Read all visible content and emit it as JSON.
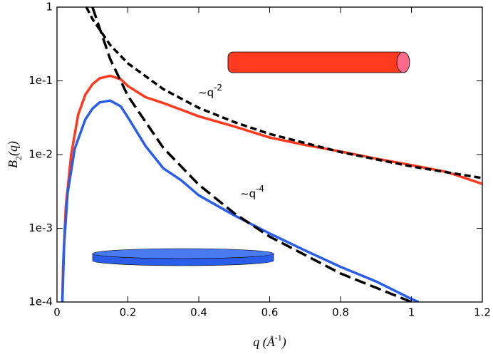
{
  "chart_data": {
    "type": "line",
    "log_y": true,
    "xlabel": [
      "q (Å",
      "-1",
      ")"
    ],
    "ylabel": [
      "B",
      "2",
      "(q)"
    ],
    "xlim": [
      0,
      1.2
    ],
    "ylim": [
      0.0001,
      1
    ],
    "xticks": [
      0,
      0.2,
      0.4,
      0.6,
      0.8,
      1,
      1.2
    ],
    "yticks": [
      {
        "value": 0.0001,
        "label": "1e-4"
      },
      {
        "value": 0.001,
        "label": "1e-3"
      },
      {
        "value": 0.01,
        "label": "1e-2"
      },
      {
        "value": 0.1,
        "label": "1e-1"
      },
      {
        "value": 1,
        "label": "1"
      }
    ],
    "annotations": [
      [
        "~q",
        "-2"
      ],
      [
        "~q",
        "-4"
      ]
    ],
    "series": [
      {
        "color": "#ff3a1e",
        "style": "solid",
        "x": [
          0.015,
          0.017,
          0.025,
          0.04,
          0.06,
          0.08,
          0.1,
          0.12,
          0.15,
          0.18,
          0.2,
          0.25,
          0.3,
          0.4,
          0.5,
          0.6,
          0.7,
          0.8,
          0.9,
          1.0,
          1.1,
          1.2
        ],
        "values": [
          0.0001,
          0.0003,
          0.002,
          0.01,
          0.035,
          0.065,
          0.09,
          0.108,
          0.117,
          0.105,
          0.085,
          0.06,
          0.05,
          0.033,
          0.024,
          0.017,
          0.0135,
          0.011,
          0.0088,
          0.0072,
          0.0058,
          0.004
        ]
      },
      {
        "color": "#2a5ee8",
        "style": "solid",
        "x": [
          0.015,
          0.02,
          0.03,
          0.05,
          0.08,
          0.1,
          0.12,
          0.15,
          0.18,
          0.2,
          0.25,
          0.3,
          0.35,
          0.4,
          0.5,
          0.6,
          0.7,
          0.8,
          0.9,
          1.0,
          1.02
        ],
        "values": [
          0.0001,
          0.0006,
          0.003,
          0.012,
          0.03,
          0.042,
          0.051,
          0.054,
          0.045,
          0.032,
          0.013,
          0.0065,
          0.0045,
          0.0028,
          0.0015,
          0.00085,
          0.0005,
          0.0003,
          0.00019,
          0.00011,
          0.0001
        ]
      },
      {
        "color": "#000000",
        "style": "dashed",
        "x": [
          0.083,
          0.1,
          0.15,
          0.2,
          0.3,
          0.4,
          0.5,
          0.6,
          0.8,
          1.0,
          1.2
        ],
        "values": [
          1,
          0.69,
          0.307,
          0.173,
          0.077,
          0.043,
          0.0276,
          0.019,
          0.0108,
          0.0069,
          0.0048
        ]
      },
      {
        "color": "#000000",
        "style": "longdash",
        "x": [
          0.1,
          0.15,
          0.2,
          0.3,
          0.4,
          0.5,
          0.6,
          0.8,
          1.0
        ],
        "values": [
          1,
          0.198,
          0.0625,
          0.0123,
          0.0039,
          0.0016,
          0.00077,
          0.000244,
          0.0001
        ]
      }
    ]
  }
}
